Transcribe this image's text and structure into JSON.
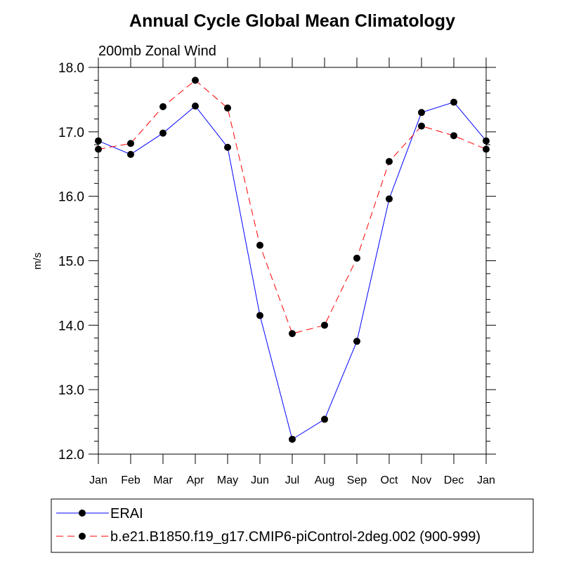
{
  "chart_data": {
    "type": "line",
    "title": "Annual Cycle Global Mean Climatology",
    "subtitle": "200mb Zonal Wind",
    "xlabel": "",
    "ylabel": "m/s",
    "categories": [
      "Jan",
      "Feb",
      "Mar",
      "Apr",
      "May",
      "Jun",
      "Jul",
      "Aug",
      "Sep",
      "Oct",
      "Nov",
      "Dec",
      "Jan"
    ],
    "ylim": [
      12.0,
      18.0
    ],
    "yticks": [
      "12.0",
      "13.0",
      "14.0",
      "15.0",
      "16.0",
      "17.0",
      "18.0"
    ],
    "grid": false,
    "legend_placement": "bottom",
    "series": [
      {
        "name": "ERAI",
        "color": "#0000ff",
        "dash": "solid",
        "values": [
          16.86,
          16.65,
          16.98,
          17.4,
          16.76,
          14.15,
          12.23,
          12.54,
          13.75,
          15.96,
          17.3,
          17.46,
          16.86
        ]
      },
      {
        "name": "b.e21.B1850.f19_g17.CMIP6-piControl-2deg.002 (900-999)",
        "color": "#ff0000",
        "dash": "dashed",
        "values": [
          16.73,
          16.82,
          17.39,
          17.8,
          17.37,
          15.24,
          13.87,
          14.0,
          15.04,
          16.54,
          17.09,
          16.94,
          16.73
        ]
      }
    ]
  }
}
